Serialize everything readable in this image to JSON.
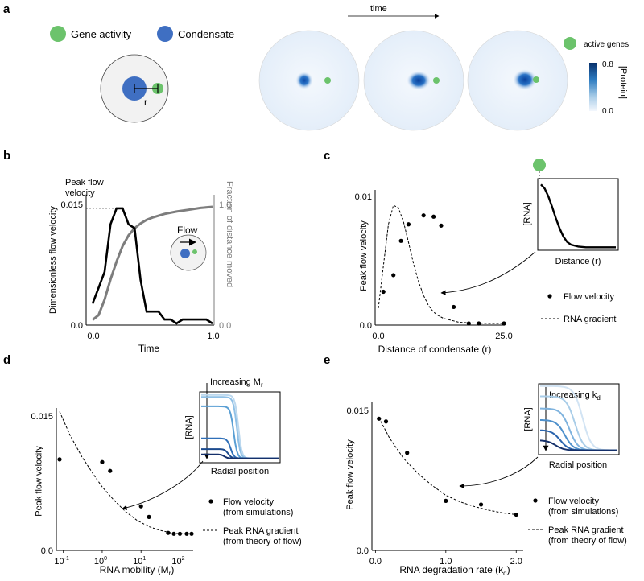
{
  "colors": {
    "gene": "#6cc36c",
    "condensate": "#3f6fc2",
    "flow_line": "#000000",
    "fraction_line": "#7d7d7d",
    "colorbar_top": "#08306b",
    "colorbar_bottom": "#f3f7fd",
    "rna_light": "#bcd8ee",
    "rna_mid": "#5a9fd4",
    "rna_dark": "#1c4b8e"
  },
  "panel_a": {
    "label": "a",
    "legend_gene": "Gene activity",
    "legend_condensate": "Condensate",
    "r_label": "r",
    "time_label": "time",
    "active_genes_label": "active genes",
    "colorbar_max": "0.8",
    "colorbar_min": "0.0",
    "colorbar_label": "[Protein]"
  },
  "panel_b": {
    "label": "b",
    "annotation": [
      "Peak flow",
      "velocity"
    ],
    "flow_label": "Flow"
  },
  "panel_c": {
    "label": "c",
    "inset_ylabel": "[RNA]",
    "inset_xlabel": "Distance (r)",
    "legend_points": "Flow velocity",
    "legend_line": "RNA gradient"
  },
  "panel_d": {
    "label": "d",
    "inset_title_base": "Increasing M",
    "inset_title_sub": "r",
    "inset_ylabel": "[RNA]",
    "inset_xlabel": "Radial position",
    "legend_points": [
      "Flow velocity",
      "(from simulations)"
    ],
    "legend_line": [
      "Peak RNA gradient",
      "(from theory of flow)"
    ]
  },
  "panel_e": {
    "label": "e",
    "inset_title_base": "Increasing k",
    "inset_title_sub": "d",
    "inset_ylabel": "[RNA]",
    "inset_xlabel": "Radial position",
    "legend_points": [
      "Flow velocity",
      "(from simulations)"
    ],
    "legend_line": [
      "Peak RNA gradient",
      "(from theory of flow)"
    ]
  },
  "chart_data": [
    {
      "id": "b",
      "type": "line",
      "xlabel": "Time",
      "ylabel": "Dimensionless flow velocity",
      "y2label": "Fraction of distance moved",
      "xlim": [
        0,
        1
      ],
      "ylim": [
        0,
        0.015
      ],
      "y2lim": [
        0,
        1
      ],
      "xticks": [
        "0.0",
        "1.0"
      ],
      "yticks": [
        "0.0",
        "0.015"
      ],
      "y2ticks": [
        "0.0",
        "1.0"
      ],
      "series": [
        {
          "name": "Flow velocity",
          "axis": "left",
          "x": [
            0,
            0.05,
            0.1,
            0.15,
            0.2,
            0.25,
            0.3,
            0.35,
            0.4,
            0.45,
            0.5,
            0.55,
            0.6,
            0.65,
            0.7,
            0.75,
            0.8,
            0.85,
            0.9,
            0.95,
            1.0
          ],
          "y": [
            0.0025,
            0.0045,
            0.0065,
            0.0125,
            0.0145,
            0.0145,
            0.0125,
            0.012,
            0.0055,
            0.0015,
            0.0015,
            0.0015,
            0.0005,
            0.0005,
            0.0,
            0.0005,
            0.0005,
            0.0005,
            0.0005,
            0.0005,
            0.0
          ]
        },
        {
          "name": "Fraction of distance moved",
          "axis": "right",
          "x": [
            0,
            0.05,
            0.1,
            0.15,
            0.2,
            0.25,
            0.3,
            0.35,
            0.4,
            0.45,
            0.5,
            0.6,
            0.7,
            0.8,
            0.9,
            1.0
          ],
          "y": [
            0.03,
            0.07,
            0.2,
            0.37,
            0.52,
            0.65,
            0.74,
            0.8,
            0.84,
            0.87,
            0.89,
            0.92,
            0.94,
            0.955,
            0.97,
            0.98
          ]
        }
      ]
    },
    {
      "id": "c",
      "type": "scatter",
      "xlabel": "Distance of condensate (r)",
      "ylabel": "Peak flow velocity",
      "xlim": [
        0,
        25
      ],
      "ylim": [
        0,
        0.01
      ],
      "xticks": [
        "0.0",
        "25.0"
      ],
      "yticks": [
        "0.0",
        "0.01"
      ],
      "points": {
        "name": "Flow velocity",
        "x": [
          1,
          3,
          4.5,
          6,
          9,
          11,
          12.5,
          15,
          18,
          20,
          25
        ],
        "y": [
          0.0025,
          0.0038,
          0.0065,
          0.0078,
          0.0085,
          0.0084,
          0.0077,
          0.0013,
          0.0,
          0.0,
          0.0
        ]
      },
      "curve": {
        "name": "RNA gradient",
        "x": [
          0,
          1,
          2,
          3,
          4,
          5,
          6,
          7,
          8,
          9,
          10,
          11,
          12,
          13,
          14,
          15,
          16,
          18,
          20,
          22,
          25
        ],
        "y": [
          0.0012,
          0.0045,
          0.0078,
          0.0093,
          0.0091,
          0.008,
          0.0064,
          0.0047,
          0.0033,
          0.0022,
          0.0014,
          0.0009,
          0.0006,
          0.0004,
          0.0003,
          0.0002,
          0.0001,
          5e-05,
          2e-05,
          0.0,
          0.0
        ]
      },
      "inset": {
        "type": "line",
        "x": [
          0,
          0.05,
          0.1,
          0.15,
          0.2,
          0.25,
          0.3,
          0.35,
          0.4,
          0.5,
          0.6,
          0.8,
          1.0
        ],
        "y": [
          0.96,
          0.9,
          0.78,
          0.62,
          0.45,
          0.3,
          0.18,
          0.1,
          0.06,
          0.03,
          0.02,
          0.02,
          0.02
        ]
      }
    },
    {
      "id": "d",
      "type": "scatter",
      "xscale": "log",
      "xlabel": "RNA mobility (M",
      "xlabel_sub": "r",
      "xlabel_end": ")",
      "ylabel": "Peak flow velocity",
      "xlim": [
        0.08,
        220
      ],
      "ylim": [
        0,
        0.015
      ],
      "xticks": [
        {
          "value": 0.1,
          "base": "10",
          "exp": "-1"
        },
        {
          "value": 1,
          "base": "10",
          "exp": "0"
        },
        {
          "value": 10,
          "base": "10",
          "exp": "1"
        },
        {
          "value": 100,
          "base": "10",
          "exp": "2"
        }
      ],
      "yticks": [
        "0.0",
        "0.015"
      ],
      "points": {
        "name": "Flow velocity (from simulations)",
        "x": [
          0.08,
          1,
          1.6,
          10,
          16,
          50,
          70,
          100,
          150,
          200
        ],
        "y": [
          0.0101,
          0.0098,
          0.0088,
          0.0048,
          0.0036,
          0.0018,
          0.0017,
          0.0017,
          0.0017,
          0.0017
        ]
      },
      "curve": {
        "name": "Peak RNA gradient (from theory of flow)",
        "x": [
          0.08,
          0.15,
          0.3,
          0.6,
          1,
          2,
          4,
          8,
          16,
          30,
          60,
          100,
          200
        ],
        "y": [
          0.0155,
          0.0128,
          0.0104,
          0.0084,
          0.007,
          0.0055,
          0.0042,
          0.0032,
          0.0025,
          0.0021,
          0.0018,
          0.0017,
          0.0017
        ]
      },
      "inset_curves": [
        {
          "level": 0.95,
          "drop": 0.48
        },
        {
          "level": 0.92,
          "drop": 0.46
        },
        {
          "level": 0.78,
          "drop": 0.42
        },
        {
          "level": 0.3,
          "drop": 0.38
        },
        {
          "level": 0.14,
          "drop": 0.35
        },
        {
          "level": 0.06,
          "drop": 0.3
        }
      ]
    },
    {
      "id": "e",
      "type": "scatter",
      "xlabel": "RNA degradation rate (k",
      "xlabel_sub": "d",
      "xlabel_end": ")",
      "ylabel": "Peak flow velocity",
      "xlim": [
        -0.05,
        2.1
      ],
      "ylim": [
        0,
        0.015
      ],
      "xticks": [
        "0.0",
        "1.0",
        "2.0"
      ],
      "yticks": [
        "0.0",
        "0.015"
      ],
      "points": {
        "name": "Flow velocity (from simulations)",
        "x": [
          0.05,
          0.15,
          0.45,
          1.0,
          1.5,
          2.0
        ],
        "y": [
          0.0141,
          0.0138,
          0.0104,
          0.0052,
          0.0048,
          0.0037
        ]
      },
      "curve": {
        "name": "Peak RNA gradient (from theory of flow)",
        "x": [
          0.05,
          0.2,
          0.4,
          0.6,
          0.8,
          1.0,
          1.2,
          1.4,
          1.6,
          1.8,
          2.0
        ],
        "y": [
          0.0142,
          0.012,
          0.0098,
          0.0082,
          0.0069,
          0.0058,
          0.0051,
          0.0046,
          0.0042,
          0.0039,
          0.0037
        ]
      },
      "inset_curves": [
        {
          "level": 0.95,
          "decay": 0.55
        },
        {
          "level": 0.8,
          "decay": 0.45
        },
        {
          "level": 0.62,
          "decay": 0.38
        },
        {
          "level": 0.45,
          "decay": 0.32
        },
        {
          "level": 0.3,
          "decay": 0.26
        },
        {
          "level": 0.15,
          "decay": 0.2
        }
      ]
    }
  ]
}
